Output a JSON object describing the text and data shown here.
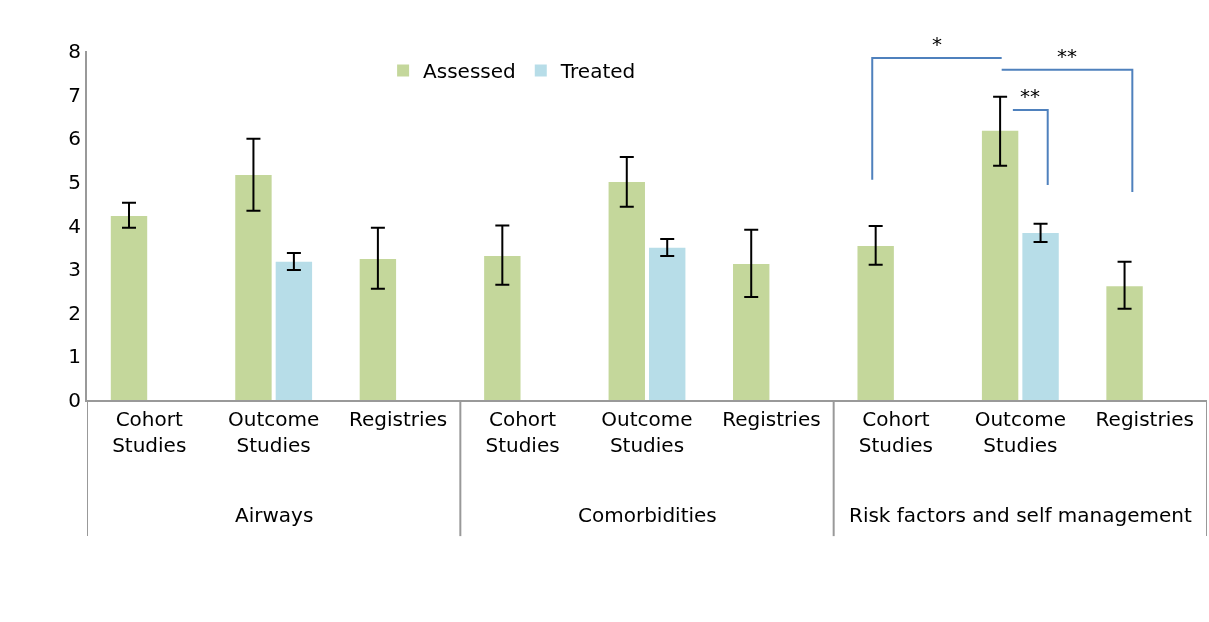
{
  "chart_data": {
    "type": "bar",
    "categories": [
      "Cohort Studies",
      "Outcome Studies",
      "Registries",
      "Cohort Studies",
      "Outcome Studies",
      "Registries",
      "Cohort Studies",
      "Outcome Studies",
      "Registries"
    ],
    "series": [
      {
        "name": "Assessed",
        "color": "#c4d79b",
        "values": [
          4.22,
          5.16,
          3.23,
          3.3,
          5.0,
          3.12,
          3.53,
          6.17,
          2.61
        ],
        "errors": [
          [
            3.95,
            4.52
          ],
          [
            4.34,
            5.99
          ],
          [
            2.55,
            3.95
          ],
          [
            2.64,
            4.0
          ],
          [
            4.43,
            5.57
          ],
          [
            2.36,
            3.9
          ],
          [
            3.1,
            3.99
          ],
          [
            5.37,
            6.95
          ],
          [
            2.09,
            3.17
          ]
        ]
      },
      {
        "name": "Treated",
        "color": "#b7dde8",
        "values": [
          null,
          3.17,
          null,
          null,
          3.49,
          null,
          null,
          3.83,
          null
        ],
        "errors": [
          null,
          [
            2.98,
            3.37
          ],
          null,
          null,
          [
            3.3,
            3.69
          ],
          null,
          null,
          [
            3.62,
            4.04
          ],
          null
        ]
      }
    ],
    "ylim": [
      0,
      8
    ],
    "yticks": [
      0,
      1,
      2,
      3,
      4,
      5,
      6,
      7,
      8
    ],
    "legend": "top",
    "annotations": [
      "Airways",
      "Comorbidities",
      "Risk factors and self management",
      "*",
      "**",
      "**"
    ]
  }
}
